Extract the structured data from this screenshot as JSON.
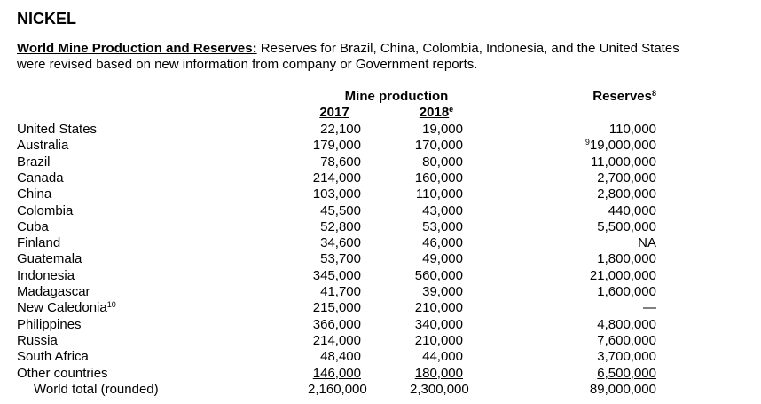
{
  "title": "NICKEL",
  "section": {
    "heading": "World Mine Production and Reserves:",
    "text": [
      "Reserves for Brazil, China, Colombia, Indonesia, and the United States",
      "were revised based on new information from company or Government reports."
    ]
  },
  "table": {
    "group_header": "Mine production",
    "columns": [
      {
        "label": "2017"
      },
      {
        "label": "2018",
        "note": "e"
      },
      {
        "label": "Reserves",
        "note": "8"
      }
    ],
    "rows": [
      {
        "country": "United States",
        "p2017": "22,100",
        "p2018": "19,000",
        "reserves": "110,000"
      },
      {
        "country": "Australia",
        "p2017": "179,000",
        "p2018": "170,000",
        "reserves": "19,000,000",
        "reserves_note": "9"
      },
      {
        "country": "Brazil",
        "p2017": "78,600",
        "p2018": "80,000",
        "reserves": "11,000,000"
      },
      {
        "country": "Canada",
        "p2017": "214,000",
        "p2018": "160,000",
        "reserves": "2,700,000"
      },
      {
        "country": "China",
        "p2017": "103,000",
        "p2018": "110,000",
        "reserves": "2,800,000"
      },
      {
        "country": "Colombia",
        "p2017": "45,500",
        "p2018": "43,000",
        "reserves": "440,000"
      },
      {
        "country": "Cuba",
        "p2017": "52,800",
        "p2018": "53,000",
        "reserves": "5,500,000"
      },
      {
        "country": "Finland",
        "p2017": "34,600",
        "p2018": "46,000",
        "reserves": "NA"
      },
      {
        "country": "Guatemala",
        "p2017": "53,700",
        "p2018": "49,000",
        "reserves": "1,800,000"
      },
      {
        "country": "Indonesia",
        "p2017": "345,000",
        "p2018": "560,000",
        "reserves": "21,000,000"
      },
      {
        "country": "Madagascar",
        "p2017": "41,700",
        "p2018": "39,000",
        "reserves": "1,600,000"
      },
      {
        "country": "New Caledonia",
        "country_note": "10",
        "p2017": "215,000",
        "p2018": "210,000",
        "reserves": "—"
      },
      {
        "country": "Philippines",
        "p2017": "366,000",
        "p2018": "340,000",
        "reserves": "4,800,000"
      },
      {
        "country": "Russia",
        "p2017": "214,000",
        "p2018": "210,000",
        "reserves": "7,600,000"
      },
      {
        "country": "South Africa",
        "p2017": "48,400",
        "p2018": "44,000",
        "reserves": "3,700,000"
      },
      {
        "country": "Other countries",
        "p2017": "146,000",
        "p2018": "180,000",
        "reserves": "6,500,000"
      },
      {
        "country": "World total (rounded)",
        "p2017": "2,160,000",
        "p2018": "2,300,000",
        "reserves": "89,000,000"
      }
    ]
  }
}
